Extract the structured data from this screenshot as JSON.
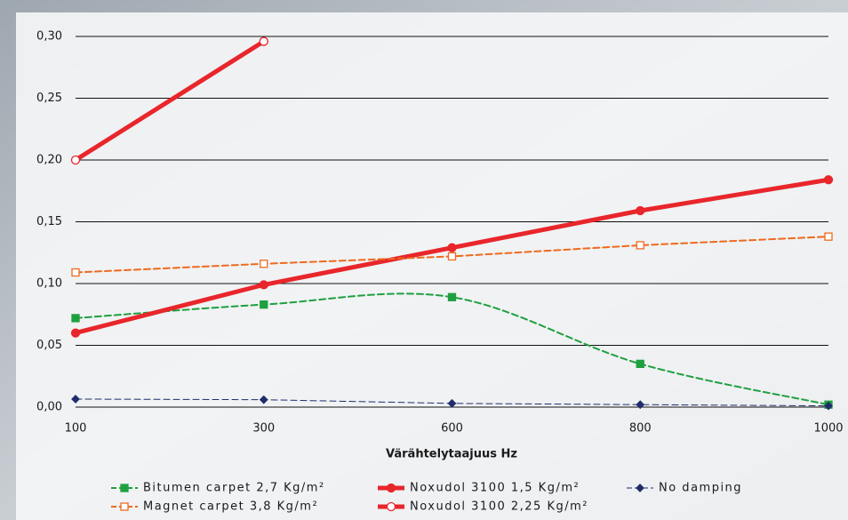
{
  "chart_data": {
    "type": "line",
    "x_label": "Värähtelytaajuus Hz",
    "categories": [
      "100",
      "300",
      "600",
      "800",
      "1000"
    ],
    "ylim": [
      0,
      0.3
    ],
    "yticks": [
      {
        "value": 0,
        "label": "0,00"
      },
      {
        "value": 0.05,
        "label": "0,05"
      },
      {
        "value": 0.1,
        "label": "0,10"
      },
      {
        "value": 0.15,
        "label": "0,15"
      },
      {
        "value": 0.2,
        "label": "0,20"
      },
      {
        "value": 0.25,
        "label": "0,25"
      },
      {
        "value": 0.3,
        "label": "0,30"
      }
    ],
    "grid": true,
    "legend": "bottom",
    "series": [
      {
        "name": "Bitumen carpet  2,7 Kg/m²",
        "color": "#1fa040",
        "values": [
          0.072,
          0.083,
          0.089,
          0.035,
          0.002
        ],
        "dashed": true,
        "smooth": true,
        "marker": "square",
        "filled": true,
        "weight": "normal"
      },
      {
        "name": "Noxudol 3100  1,5 Kg/m²",
        "color": "#e8262b",
        "values": [
          0.06,
          0.099,
          0.129,
          0.159,
          0.184
        ],
        "dashed": false,
        "smooth": false,
        "marker": "circle",
        "filled": true,
        "weight": "bold"
      },
      {
        "name": "No damping",
        "color": "#1f2d6b",
        "values": [
          0.0065,
          0.006,
          0.003,
          0.002,
          0.001
        ],
        "dashed": true,
        "smooth": false,
        "marker": "diamond",
        "filled": true,
        "weight": "thin"
      },
      {
        "name": "Magnet carpet  3,8 Kg/m²",
        "color": "#ee6a1e",
        "values": [
          0.109,
          0.116,
          0.122,
          0.131,
          0.138
        ],
        "dashed": true,
        "smooth": false,
        "marker": "square",
        "filled": false,
        "weight": "normal"
      },
      {
        "name": "Noxudol 3100  2,25 Kg/m²",
        "color": "#e8262b",
        "values": [
          0.2,
          0.296,
          null,
          null,
          null
        ],
        "dashed": false,
        "smooth": false,
        "marker": "circle",
        "filled": false,
        "weight": "bold"
      }
    ]
  }
}
